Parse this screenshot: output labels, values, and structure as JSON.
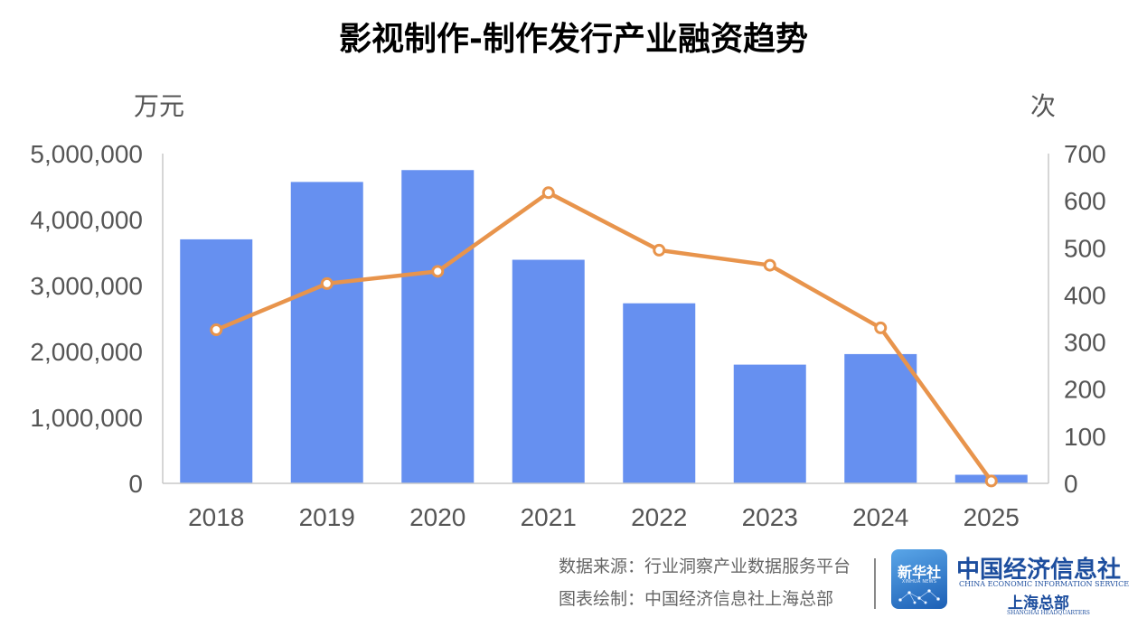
{
  "chart_data": {
    "type": "bar",
    "title": "影视制作-制作发行产业融资趋势",
    "ylabel": "万元",
    "y2label": "次",
    "categories": [
      "2018",
      "2019",
      "2020",
      "2021",
      "2022",
      "2023",
      "2024",
      "2025"
    ],
    "ylim": [
      0,
      5000000
    ],
    "y2lim": [
      0,
      700
    ],
    "yticks": [
      "0",
      "1,000,000",
      "2,000,000",
      "3,000,000",
      "4,000,000",
      "5,000,000"
    ],
    "y2ticks": [
      "0",
      "100",
      "200",
      "300",
      "400",
      "500",
      "600",
      "700"
    ],
    "series": [
      {
        "type": "bar",
        "axis": "left",
        "color": "#6690f0",
        "values": [
          3700000,
          4570000,
          4750000,
          3390000,
          2730000,
          1800000,
          1960000,
          130000
        ]
      },
      {
        "type": "line",
        "axis": "right",
        "color": "#e8944c",
        "values": [
          326,
          424,
          450,
          617,
          495,
          463,
          330,
          5
        ]
      }
    ],
    "grid": false
  },
  "footer": {
    "source_label": "数据来源：",
    "source_value": "行业洞察产业数据服务平台",
    "drawn_label": "图表绘制：",
    "drawn_value": "中国经济信息社上海总部"
  },
  "logo": {
    "badge_text": "新华社",
    "badge_sub": "XINHUA NEWS",
    "org_name": "中国经济信息社",
    "org_en": "CHINA ECONOMIC INFORMATION SERVICE",
    "branch": "上海总部",
    "branch_en": "SHANGHAI HEADQUARTERS"
  }
}
